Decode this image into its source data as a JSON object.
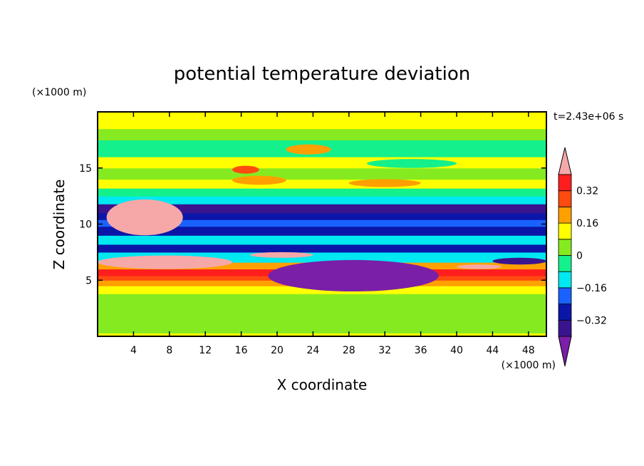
{
  "chart_data": {
    "type": "heatmap",
    "title": "potential temperature deviation",
    "xlabel": "X coordinate",
    "ylabel": "Z coordinate",
    "x_unit": "(×1000 m)",
    "y_unit": "(×1000 m)",
    "time_label": "t=2.43e+06 s",
    "xlim": [
      0,
      50
    ],
    "ylim": [
      0,
      20
    ],
    "x_ticks": [
      4,
      8,
      12,
      16,
      20,
      24,
      28,
      32,
      36,
      40,
      44,
      48
    ],
    "y_ticks": [
      5,
      10,
      15
    ],
    "colorbar": {
      "levels": [
        -0.4,
        -0.32,
        -0.24,
        -0.16,
        -0.08,
        0,
        0.08,
        0.16,
        0.24,
        0.32,
        0.4
      ],
      "tick_labels": [
        "0.32",
        "0.16",
        "0",
        "−0.16",
        "−0.32"
      ],
      "tick_values": [
        0.32,
        0.16,
        0,
        -0.16,
        -0.32
      ],
      "colors": [
        "#7a1fa8",
        "#3a148e",
        "#0b16a8",
        "#1a62ff",
        "#00e8f0",
        "#14f08c",
        "#86ea20",
        "#ffff00",
        "#ffa000",
        "#ff4a10",
        "#ff1e1e",
        "#f6a8a8"
      ]
    },
    "bands": [
      {
        "z": [
          0,
          0.3
        ],
        "value": 0.08
      },
      {
        "z": [
          0.3,
          3.8
        ],
        "value": 0.02
      },
      {
        "z": [
          3.8,
          4.5
        ],
        "value": 0.1
      },
      {
        "z": [
          4.5,
          5.0
        ],
        "value": 0.2
      },
      {
        "z": [
          5.0,
          5.4
        ],
        "value": 0.28
      },
      {
        "z": [
          5.4,
          6.0
        ],
        "value": 0.36
      },
      {
        "z": [
          6.0,
          6.6
        ],
        "value": 0.2
      },
      {
        "z": [
          6.6,
          7.5
        ],
        "value": -0.1
      },
      {
        "z": [
          7.5,
          8.2
        ],
        "value": -0.28
      },
      {
        "z": [
          8.2,
          9.0
        ],
        "value": -0.12
      },
      {
        "z": [
          9.0,
          9.8
        ],
        "value": -0.3
      },
      {
        "z": [
          9.8,
          10.4
        ],
        "value": -0.18
      },
      {
        "z": [
          10.4,
          11.0
        ],
        "value": -0.32
      },
      {
        "z": [
          11.0,
          11.8
        ],
        "value": -0.36
      },
      {
        "z": [
          11.8,
          12.5
        ],
        "value": -0.12
      },
      {
        "z": [
          12.5,
          13.2
        ],
        "value": -0.02
      },
      {
        "z": [
          13.2,
          14.0
        ],
        "value": 0.12
      },
      {
        "z": [
          14.0,
          15.0
        ],
        "value": 0.04
      },
      {
        "z": [
          15.0,
          16.0
        ],
        "value": 0.1
      },
      {
        "z": [
          16.0,
          17.5
        ],
        "value": -0.02
      },
      {
        "z": [
          17.5,
          18.5
        ],
        "value": 0.06
      },
      {
        "z": [
          18.5,
          20.0
        ],
        "value": 0.08
      }
    ],
    "features": [
      {
        "name": "warm anomaly left upper",
        "x": [
          1,
          9.5
        ],
        "z": [
          9,
          12.2
        ],
        "value": 0.44
      },
      {
        "name": "warm anomaly left lower",
        "x": [
          0,
          15
        ],
        "z": [
          6.0,
          7.2
        ],
        "value": 0.44
      },
      {
        "name": "warm anomaly center",
        "x": [
          17,
          24
        ],
        "z": [
          7.0,
          7.5
        ],
        "value": 0.44
      },
      {
        "name": "warm anomaly right",
        "x": [
          40,
          45
        ],
        "z": [
          6.0,
          6.4
        ],
        "value": 0.44
      },
      {
        "name": "cold anomaly center",
        "x": [
          19,
          38
        ],
        "z": [
          4.0,
          6.8
        ],
        "value": -0.44
      },
      {
        "name": "cold anomaly right",
        "x": [
          44,
          50
        ],
        "z": [
          6.4,
          7.0
        ],
        "value": -0.38
      },
      {
        "name": "warm blob upper 1",
        "x": [
          15,
          21
        ],
        "z": [
          13.5,
          14.3
        ],
        "value": 0.2
      },
      {
        "name": "warm blob upper 2",
        "x": [
          21,
          26
        ],
        "z": [
          16.2,
          17.1
        ],
        "value": 0.2
      },
      {
        "name": "warm blob upper 3",
        "x": [
          28,
          36
        ],
        "z": [
          13.3,
          14.0
        ],
        "value": 0.2
      },
      {
        "name": "warm blob upper 4",
        "x": [
          15,
          18
        ],
        "z": [
          14.5,
          15.2
        ],
        "value": 0.24
      },
      {
        "name": "cool blob upper",
        "x": [
          30,
          40
        ],
        "z": [
          15.0,
          15.8
        ],
        "value": -0.05
      }
    ]
  }
}
